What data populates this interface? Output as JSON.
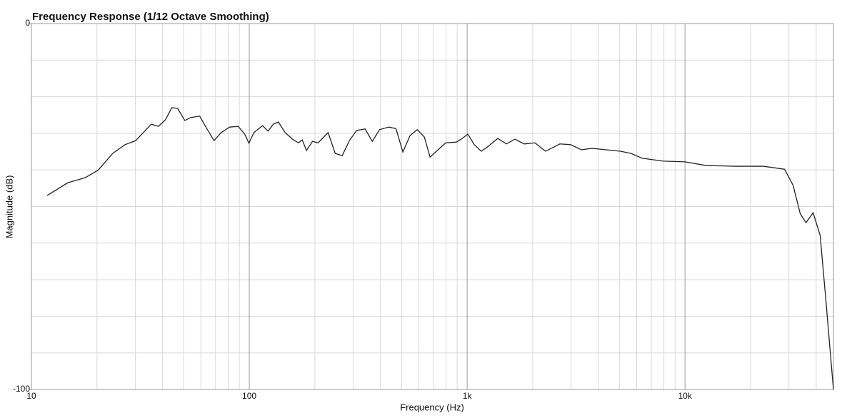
{
  "chart_data": {
    "type": "line",
    "title": "Frequency Response (1/12 Octave Smoothing)",
    "x_label": "Frequency (Hz)",
    "y_label": "Magnitude (dB)",
    "x_scale": "log",
    "grid": true,
    "xlim": [
      10,
      48000
    ],
    "ylim": [
      -100,
      0
    ],
    "xticks": [
      10,
      100,
      {
        "value": 1000,
        "label": "1k"
      },
      {
        "value": 10000,
        "label": "10k"
      }
    ],
    "yticks": [
      0,
      -100
    ],
    "x_minor_grid": [
      20,
      30,
      40,
      50,
      60,
      70,
      80,
      90,
      200,
      300,
      400,
      500,
      600,
      700,
      800,
      900,
      2000,
      3000,
      4000,
      5000,
      6000,
      7000,
      8000,
      9000,
      20000,
      30000,
      40000
    ],
    "y_minor_grid": [
      -10,
      -20,
      -30,
      -40,
      -50,
      -60,
      -70,
      -80,
      -90
    ],
    "x": [
      11.8,
      14.7,
      17.7,
      20.3,
      23.6,
      26.9,
      30.1,
      35.5,
      38.3,
      41.2,
      44.1,
      46.9,
      50.6,
      53.7,
      59.2,
      63.8,
      68.9,
      74.3,
      81.3,
      89,
      95.2,
      99.6,
      105,
      115,
      122,
      129,
      136,
      146,
      158,
      168,
      175,
      183,
      195,
      207,
      230,
      248,
      267,
      288,
      311,
      340,
      367,
      396,
      436,
      471,
      507,
      547,
      590,
      636,
      676,
      723,
      797,
      893,
      949,
      1007,
      1078,
      1162,
      1253,
      1382,
      1514,
      1657,
      1828,
      2046,
      2291,
      2666,
      2985,
      3344,
      3744,
      4348,
      5053,
      5659,
      6340,
      7943,
      10000,
      12510,
      16900,
      22870,
      28640,
      31330,
      33810,
      35910,
      38730,
      41720,
      44290,
      46010,
      48000
    ],
    "series": [
      {
        "name": "Response",
        "color": "#222222",
        "values": [
          -47,
          -43.5,
          -42.1,
          -40,
          -35.5,
          -33.1,
          -32,
          -27.5,
          -28.1,
          -26.3,
          -23,
          -23.2,
          -26.5,
          -25.7,
          -25.3,
          -28.7,
          -32,
          -29.8,
          -28.3,
          -28.1,
          -30.2,
          -32.7,
          -29.8,
          -27.9,
          -29.4,
          -27.5,
          -26.9,
          -29.8,
          -31.6,
          -32.6,
          -31.8,
          -34.7,
          -32.2,
          -32.6,
          -29.8,
          -35.5,
          -36.1,
          -32,
          -29.2,
          -28.8,
          -32.2,
          -29,
          -28.3,
          -28.7,
          -35.1,
          -30.6,
          -29,
          -31,
          -36.5,
          -34.9,
          -32.6,
          -32.4,
          -31.4,
          -30.2,
          -33.1,
          -34.9,
          -33.5,
          -31.4,
          -32.9,
          -31.6,
          -32.9,
          -32.6,
          -34.9,
          -32.9,
          -33.1,
          -34.5,
          -34.1,
          -34.5,
          -34.9,
          -35.5,
          -36.8,
          -37.6,
          -37.8,
          -38.8,
          -39,
          -39,
          -39.8,
          -44.2,
          -52,
          -54.4,
          -51.7,
          -57.9,
          -75.4,
          -87.1,
          -100
        ]
      }
    ]
  }
}
